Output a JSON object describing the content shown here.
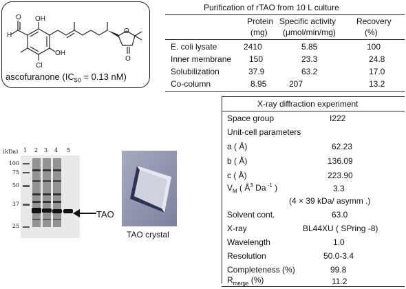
{
  "structure": {
    "compound_name": "ascofuranone",
    "ic50_prefix": "(IC",
    "ic50_sub": "50",
    "ic50_value": " = 0.13 nM)",
    "atoms": {
      "h": "H",
      "o_ald": "O",
      "oh_top": "OH",
      "oh_bottom": "OH",
      "cl": "Cl",
      "o_ring": "O",
      "o_ketone": "O"
    }
  },
  "purification": {
    "title": "Purification of    rTAO   from 10 L culture",
    "headers": [
      {
        "line1": "Protein",
        "line2": "(mg)"
      },
      {
        "line1": "Specific activity",
        "line2": "(μmol/min/mg)"
      },
      {
        "line1": "Recovery",
        "line2": "(%)"
      }
    ],
    "rows": [
      {
        "label": "E. coli   lysate",
        "protein": "2410",
        "activity": "5.85",
        "recovery": "100"
      },
      {
        "label": "Inner membrane",
        "protein": "150",
        "activity": "23.3",
        "recovery": "24.8"
      },
      {
        "label": "Solubilization",
        "protein": "37.9",
        "activity": "63.2",
        "recovery": "17.0"
      },
      {
        "label": "Co-column",
        "protein": "8.95",
        "activity": "207",
        "recovery": "13.2"
      }
    ]
  },
  "xray": {
    "title": "X-ray diffraction experiment",
    "rows": [
      {
        "label": "Space group",
        "value": "I222"
      },
      {
        "label": "Unit-cell parameters",
        "value": ""
      },
      {
        "label": "a ( Å)",
        "value": "62.23"
      },
      {
        "label": "b ( Å)",
        "value": "136.09"
      },
      {
        "label": "c ( Å)",
        "value": "223.90"
      },
      {
        "label_main": "V",
        "label_sub": "M",
        "label_rest": "  ( Å",
        "label_sup1": "3",
        "label_rest2": " Da",
        "label_sup2": " -1",
        "label_end": " )",
        "value": "3.3"
      },
      {
        "label": "",
        "value": "(4 × 39 kDa/  asymm .)"
      },
      {
        "label": "Solvent cont.",
        "value": "63.0"
      },
      {
        "label": "X-ray",
        "value": "BL44XU (  SPring  -8)"
      },
      {
        "label": "Wavelength",
        "value": "1.0"
      },
      {
        "label": "Resolution",
        "value": "50.0-3.4"
      },
      {
        "label": "Completeness (%)",
        "value": "99.8"
      },
      {
        "label_main": "R",
        "label_sub": "merge",
        "label_end": "  (%)",
        "value": "11.2"
      }
    ]
  },
  "gel": {
    "kda_title": "(kDa)",
    "markers": [
      "100",
      "75",
      "50",
      "37",
      "25"
    ],
    "lanes": [
      "1",
      "2",
      "3",
      "4",
      "5"
    ],
    "band_label": "TAO"
  },
  "crystal": {
    "caption": "TAO crystal"
  },
  "colors": {
    "ink": "#111111",
    "gel_bg": "#e9e9e9",
    "crystal_bg": "#8f95ad"
  }
}
